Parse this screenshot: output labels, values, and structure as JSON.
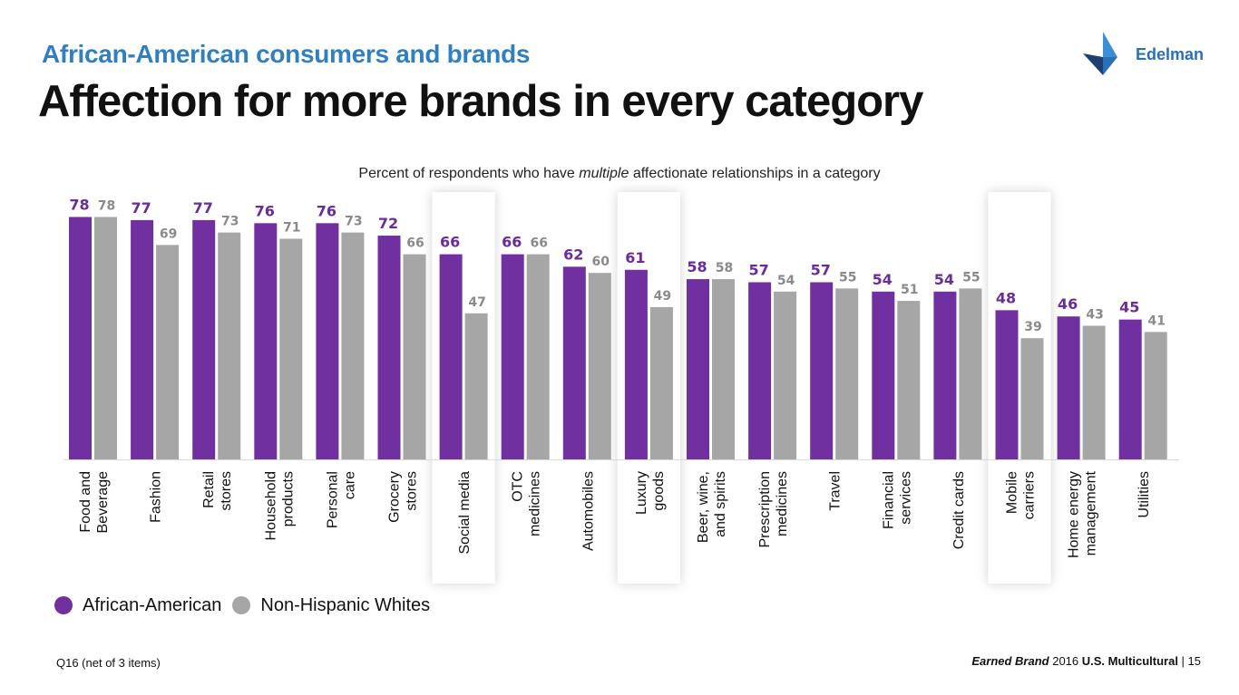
{
  "header": {
    "kicker": "African-American consumers and brands",
    "title": "Affection for more brands in every category",
    "logo_text": "Edelman"
  },
  "subtitle": {
    "before": "Percent of respondents who have ",
    "emphasis": "multiple",
    "after": " affectionate relationships in a category"
  },
  "colors": {
    "african_american": "#7030a0",
    "non_hispanic_whites": "#a6a6a6",
    "kicker": "#2f7fc1",
    "logo": "#2a70b5"
  },
  "chart_data": {
    "type": "bar",
    "categories": [
      [
        "Food and",
        "Beverage"
      ],
      [
        "Fashion"
      ],
      [
        "Retail",
        "stores"
      ],
      [
        "Household",
        "products"
      ],
      [
        "Personal",
        "care"
      ],
      [
        "Grocery",
        "stores"
      ],
      [
        "Social media"
      ],
      [
        "OTC",
        "medicines"
      ],
      [
        "Automobiles"
      ],
      [
        "Luxury",
        "goods"
      ],
      [
        "Beer, wine,",
        "and spirits"
      ],
      [
        "Prescription",
        "medicines"
      ],
      [
        "Travel"
      ],
      [
        "Financial",
        "services"
      ],
      [
        "Credit cards"
      ],
      [
        "Mobile",
        "carriers"
      ],
      [
        "Home energy",
        "management"
      ],
      [
        "Utilities"
      ]
    ],
    "highlighted_categories": [
      6,
      9,
      15
    ],
    "series": [
      {
        "name": "African-American",
        "values": [
          78,
          77,
          77,
          76,
          76,
          72,
          66,
          66,
          62,
          61,
          58,
          57,
          57,
          54,
          54,
          48,
          46,
          45
        ]
      },
      {
        "name": "Non-Hispanic Whites",
        "values": [
          78,
          69,
          73,
          71,
          73,
          66,
          47,
          66,
          60,
          49,
          58,
          54,
          55,
          51,
          55,
          39,
          43,
          41
        ]
      }
    ],
    "ylim": [
      0,
      100
    ],
    "grid": false,
    "legend_position": "bottom-left"
  },
  "legend": {
    "items": [
      {
        "label": "African-American",
        "color": "#7030a0"
      },
      {
        "label": "Non-Hispanic Whites",
        "color": "#a6a6a6"
      }
    ]
  },
  "footer": {
    "source_note": "Q16 (net of 3 items)",
    "brand_italic": "Earned Brand",
    "year": " 2016 ",
    "report": "U.S. Multicultural",
    "page": " | 15"
  }
}
